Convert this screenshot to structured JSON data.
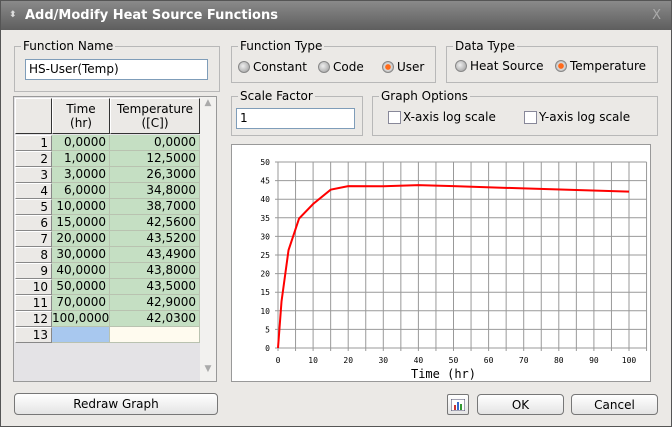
{
  "window": {
    "title": "Add/Modify Heat Source Functions",
    "close": "X"
  },
  "function_name": {
    "label": "Function Name",
    "value": "HS-User(Temp)"
  },
  "function_type": {
    "label": "Function Type",
    "options": [
      {
        "label": "Constant",
        "selected": false
      },
      {
        "label": "Code",
        "selected": false
      },
      {
        "label": "User",
        "selected": true
      }
    ]
  },
  "data_type": {
    "label": "Data Type",
    "options": [
      {
        "label": "Heat Source",
        "selected": false
      },
      {
        "label": "Temperature",
        "selected": true
      }
    ]
  },
  "scale_factor": {
    "label": "Scale Factor",
    "value": "1"
  },
  "graph_options": {
    "label": "Graph Options",
    "x_log": {
      "label": "X-axis log scale",
      "checked": false
    },
    "y_log": {
      "label": "Y-axis log scale",
      "checked": false
    }
  },
  "table": {
    "columns": [
      "Time\n(hr)",
      "Temperature\n([C])"
    ],
    "rows": [
      [
        "1",
        "0,0000",
        "0,0000"
      ],
      [
        "2",
        "1,0000",
        "12,5000"
      ],
      [
        "3",
        "3,0000",
        "26,3000"
      ],
      [
        "4",
        "6,0000",
        "34,8000"
      ],
      [
        "5",
        "10,0000",
        "38,7000"
      ],
      [
        "6",
        "15,0000",
        "42,5600"
      ],
      [
        "7",
        "20,0000",
        "43,5200"
      ],
      [
        "8",
        "30,0000",
        "43,4900"
      ],
      [
        "9",
        "40,0000",
        "43,8000"
      ],
      [
        "10",
        "50,0000",
        "43,5000"
      ],
      [
        "11",
        "70,0000",
        "42,9000"
      ],
      [
        "12",
        "100,0000",
        "42,0300"
      ],
      [
        "13",
        "",
        ""
      ]
    ]
  },
  "buttons": {
    "redraw": "Redraw Graph",
    "ok": "OK",
    "cancel": "Cancel"
  },
  "chart_data": {
    "type": "line",
    "xlabel": "Time (hr)",
    "ylabel": "",
    "xlim": [
      0,
      100
    ],
    "ylim": [
      0,
      50
    ],
    "grid": true,
    "line_color": "#ff0000",
    "x": [
      0,
      1,
      3,
      6,
      10,
      15,
      20,
      30,
      40,
      50,
      70,
      100
    ],
    "y": [
      0,
      12.5,
      26.3,
      34.8,
      38.7,
      42.56,
      43.52,
      43.49,
      43.8,
      43.5,
      42.9,
      42.03
    ],
    "xticks": [
      0,
      10,
      20,
      30,
      40,
      50,
      60,
      70,
      80,
      90,
      100
    ],
    "yticks": [
      0,
      5,
      10,
      15,
      20,
      25,
      30,
      35,
      40,
      45,
      50
    ]
  }
}
